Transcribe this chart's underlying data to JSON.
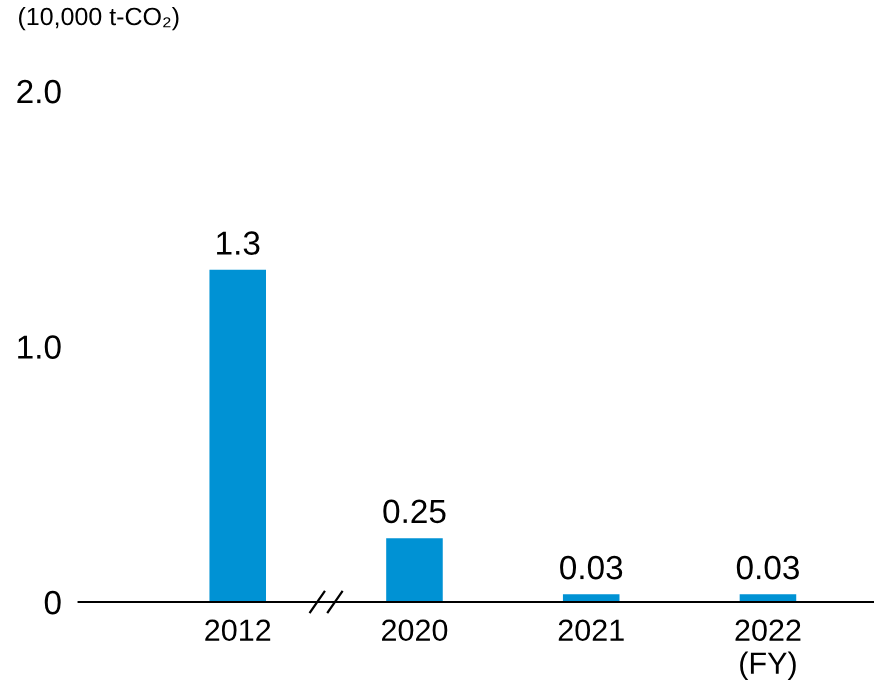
{
  "chart_data": {
    "type": "bar",
    "ylabel": "(10,000 t-CO₂)",
    "categories": [
      "2012",
      "2020",
      "2021",
      "2022\n(FY)"
    ],
    "values": [
      1.3,
      0.25,
      0.03,
      0.03
    ],
    "color": "#0092d4",
    "ylim": [
      0,
      2.0
    ],
    "yticks": [
      0,
      {
        "value": 1.0,
        "label": "1.0"
      },
      {
        "value": 2.0,
        "label": "2.0"
      }
    ],
    "data_labels": true,
    "grid": false,
    "legend": false
  }
}
